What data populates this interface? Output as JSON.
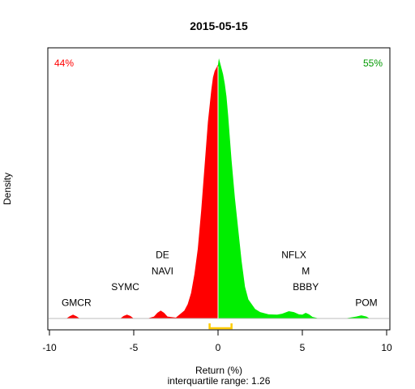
{
  "chart_data": {
    "type": "area",
    "title": "2015-05-15",
    "xlabel": "Return (%)",
    "ylabel": "Density",
    "subtitle": "interquartile range: 1.26",
    "xlim": [
      -10,
      10
    ],
    "xticks": [
      "-10",
      "-5",
      "0",
      "5",
      "10"
    ],
    "grid": false,
    "negative_share": "44%",
    "positive_share": "55%",
    "colors": {
      "negative": "#ff0000",
      "positive": "#00ee00",
      "iqr": "#ffcc00",
      "zero_line": "#ffffff",
      "baseline": "#bebebe"
    },
    "density_curve": {
      "x": [
        -9.9,
        -9.0,
        -8.8,
        -8.6,
        -8.4,
        -8.2,
        -7.0,
        -5.8,
        -5.6,
        -5.4,
        -5.2,
        -5.0,
        -4.2,
        -3.8,
        -3.6,
        -3.4,
        -3.2,
        -3.0,
        -2.5,
        -2.0,
        -1.8,
        -1.6,
        -1.4,
        -1.2,
        -1.0,
        -0.8,
        -0.6,
        -0.4,
        -0.3,
        -0.2,
        -0.1,
        0.0,
        0.05,
        0.1,
        0.2,
        0.3,
        0.4,
        0.5,
        0.6,
        0.8,
        1.0,
        1.2,
        1.4,
        1.6,
        1.8,
        2.0,
        2.2,
        2.5,
        3.0,
        3.5,
        3.8,
        4.2,
        4.5,
        4.8,
        5.0,
        5.2,
        5.4,
        5.6,
        6.0,
        7.5,
        8.2,
        8.5,
        8.8,
        9.0,
        9.9
      ],
      "y": [
        0,
        0,
        0.7,
        1.2,
        0.7,
        0,
        0,
        0,
        0.8,
        1.2,
        0.8,
        0,
        0,
        0.6,
        1.8,
        2.5,
        1.8,
        0.6,
        0.3,
        2.5,
        4.5,
        8,
        14,
        22,
        34,
        48,
        62,
        72,
        76,
        78,
        79,
        80,
        82,
        81,
        79,
        77,
        74,
        70,
        64,
        50,
        38,
        28,
        18,
        10,
        6,
        4.5,
        3,
        2,
        1.3,
        1.2,
        1.5,
        2.3,
        2,
        1.3,
        1.2,
        1.8,
        1.3,
        0.5,
        0,
        0,
        0.6,
        1,
        0.6,
        0,
        0
      ]
    },
    "annotations": [
      {
        "label": "GMCR",
        "x": -8.4,
        "y": 5
      },
      {
        "label": "SYMC",
        "x": -5.5,
        "y": 10
      },
      {
        "label": "DE",
        "x": -3.3,
        "y": 20
      },
      {
        "label": "NAVI",
        "x": -3.3,
        "y": 15
      },
      {
        "label": "NFLX",
        "x": 4.5,
        "y": 20
      },
      {
        "label": "M",
        "x": 5.2,
        "y": 15
      },
      {
        "label": "BBBY",
        "x": 5.2,
        "y": 10
      },
      {
        "label": "POM",
        "x": 8.8,
        "y": 5
      }
    ],
    "iqr_bracket": [
      -0.5,
      0.8
    ]
  }
}
